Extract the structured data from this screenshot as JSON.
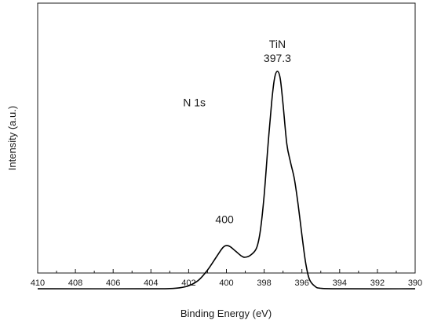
{
  "chart_data": {
    "type": "line",
    "title": "",
    "xlabel": "Binding Energy (eV)",
    "ylabel": "Intensity (a.u.)",
    "xlim": [
      410,
      390
    ],
    "x_reversed": true,
    "xticks": [
      410,
      408,
      406,
      404,
      402,
      400,
      398,
      396,
      394,
      392,
      390
    ],
    "xtick_labels": [
      "410",
      "408",
      "406",
      "404",
      "402",
      "400",
      "398",
      "396",
      "394",
      "392",
      "390"
    ],
    "ylim": [
      0,
      1.0
    ],
    "yticks_shown": false,
    "grid": false,
    "series": [
      {
        "color": "#000000",
        "points": [
          [
            410.0,
            0.05
          ],
          [
            404.0,
            0.05
          ],
          [
            403.0,
            0.051
          ],
          [
            402.5,
            0.054
          ],
          [
            402.0,
            0.063
          ],
          [
            401.5,
            0.085
          ],
          [
            401.0,
            0.13
          ],
          [
            400.5,
            0.19
          ],
          [
            400.2,
            0.225
          ],
          [
            400.0,
            0.235
          ],
          [
            399.8,
            0.23
          ],
          [
            399.5,
            0.21
          ],
          [
            399.2,
            0.19
          ],
          [
            399.0,
            0.185
          ],
          [
            398.7,
            0.195
          ],
          [
            398.4,
            0.225
          ],
          [
            398.2,
            0.3
          ],
          [
            398.0,
            0.45
          ],
          [
            397.8,
            0.66
          ],
          [
            397.6,
            0.85
          ],
          [
            397.45,
            0.95
          ],
          [
            397.3,
            0.98
          ],
          [
            397.15,
            0.95
          ],
          [
            397.0,
            0.84
          ],
          [
            396.8,
            0.67
          ],
          [
            396.6,
            0.59
          ],
          [
            396.4,
            0.52
          ],
          [
            396.2,
            0.41
          ],
          [
            396.0,
            0.28
          ],
          [
            395.8,
            0.16
          ],
          [
            395.6,
            0.09
          ],
          [
            395.3,
            0.06
          ],
          [
            395.0,
            0.052
          ],
          [
            394.0,
            0.05
          ],
          [
            390.0,
            0.05
          ]
        ]
      }
    ],
    "annotations": [
      {
        "text": "TiN",
        "x": 397.3,
        "y": 1.08
      },
      {
        "text": "397.3",
        "x": 397.3,
        "y": 1.02
      },
      {
        "text": "N 1s",
        "x": 401.7,
        "y": 0.83
      },
      {
        "text": "400",
        "x": 400.1,
        "y": 0.33
      }
    ]
  }
}
